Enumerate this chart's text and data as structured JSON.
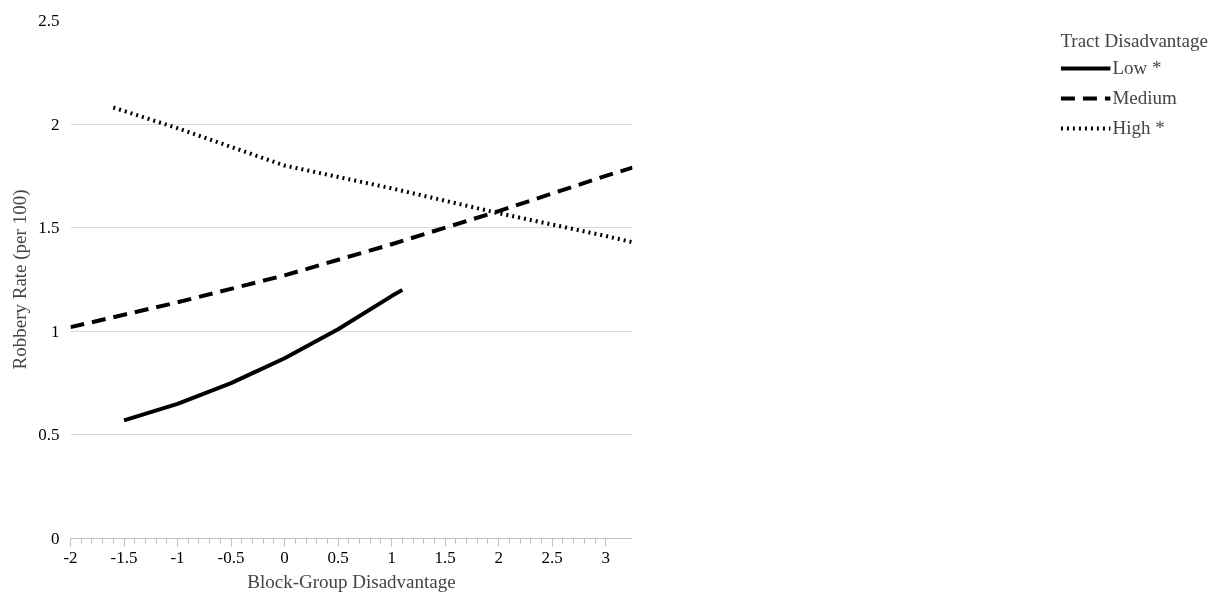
{
  "chart_data": {
    "type": "line",
    "xlabel": "Block-Group Disadvantage",
    "ylabel": "Robbery Rate (per 100)",
    "legend_title": "Tract Disadvantage",
    "xlim": [
      -2,
      3.25
    ],
    "xticks": [
      -2,
      -1.5,
      -1,
      -0.5,
      0,
      0.5,
      1,
      1.5,
      2,
      2.5,
      3
    ],
    "ylim": [
      0,
      2.5
    ],
    "yticks": [
      0,
      0.5,
      1,
      1.5,
      2,
      2.5
    ],
    "grid": "y",
    "legend": "right",
    "marker": "none",
    "series": [
      {
        "name": "Low *",
        "color": "#000000",
        "line_style": "solid",
        "x": [
          -1.5,
          -1,
          -0.5,
          0,
          0.5,
          1,
          1.1
        ],
        "values": [
          0.57,
          0.65,
          0.75,
          0.87,
          1.01,
          1.17,
          1.2
        ]
      },
      {
        "name": "Medium",
        "color": "#000000",
        "line_style": "dashed",
        "x": [
          -2,
          -1,
          0,
          1,
          2,
          3,
          3.25
        ],
        "values": [
          1.02,
          1.14,
          1.27,
          1.42,
          1.58,
          1.75,
          1.79
        ]
      },
      {
        "name": "High *",
        "color": "#000000",
        "line_style": "dotted",
        "x": [
          -1.6,
          -1,
          0,
          1,
          2,
          3,
          3.25
        ],
        "values": [
          2.08,
          1.98,
          1.8,
          1.69,
          1.57,
          1.46,
          1.43
        ]
      }
    ]
  }
}
